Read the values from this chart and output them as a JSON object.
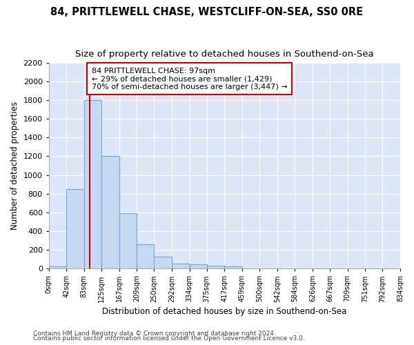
{
  "title1": "84, PRITTLEWELL CHASE, WESTCLIFF-ON-SEA, SS0 0RE",
  "title2": "Size of property relative to detached houses in Southend-on-Sea",
  "xlabel": "Distribution of detached houses by size in Southend-on-Sea",
  "ylabel": "Number of detached properties",
  "footer1": "Contains HM Land Registry data © Crown copyright and database right 2024.",
  "footer2": "Contains public sector information licensed under the Open Government Licence v3.0.",
  "bin_edges": [
    0,
    42,
    83,
    125,
    167,
    209,
    250,
    292,
    334,
    375,
    417,
    459,
    500,
    542,
    584,
    626,
    667,
    709,
    751,
    792,
    834
  ],
  "bar_heights": [
    25,
    850,
    1800,
    1200,
    590,
    260,
    125,
    50,
    45,
    30,
    20,
    0,
    0,
    0,
    0,
    0,
    0,
    0,
    0,
    0
  ],
  "bar_color": "#c5d8f0",
  "bar_edge_color": "#6aaad4",
  "property_size": 97,
  "vline_color": "#cc0000",
  "annotation_text": "84 PRITTLEWELL CHASE: 97sqm\n← 29% of detached houses are smaller (1,429)\n70% of semi-detached houses are larger (3,447) →",
  "annotation_box_color": "#ffffff",
  "annotation_box_edge": "#cc0000",
  "ylim": [
    0,
    2200
  ],
  "yticks": [
    0,
    200,
    400,
    600,
    800,
    1000,
    1200,
    1400,
    1600,
    1800,
    2000,
    2200
  ],
  "fig_bg_color": "#ffffff",
  "plot_bg_color": "#dce6f5",
  "grid_color": "#ffffff",
  "title1_fontsize": 10.5,
  "title2_fontsize": 9.5,
  "xlabel_fontsize": 8.5,
  "ylabel_fontsize": 8.5,
  "footer_fontsize": 6.5
}
